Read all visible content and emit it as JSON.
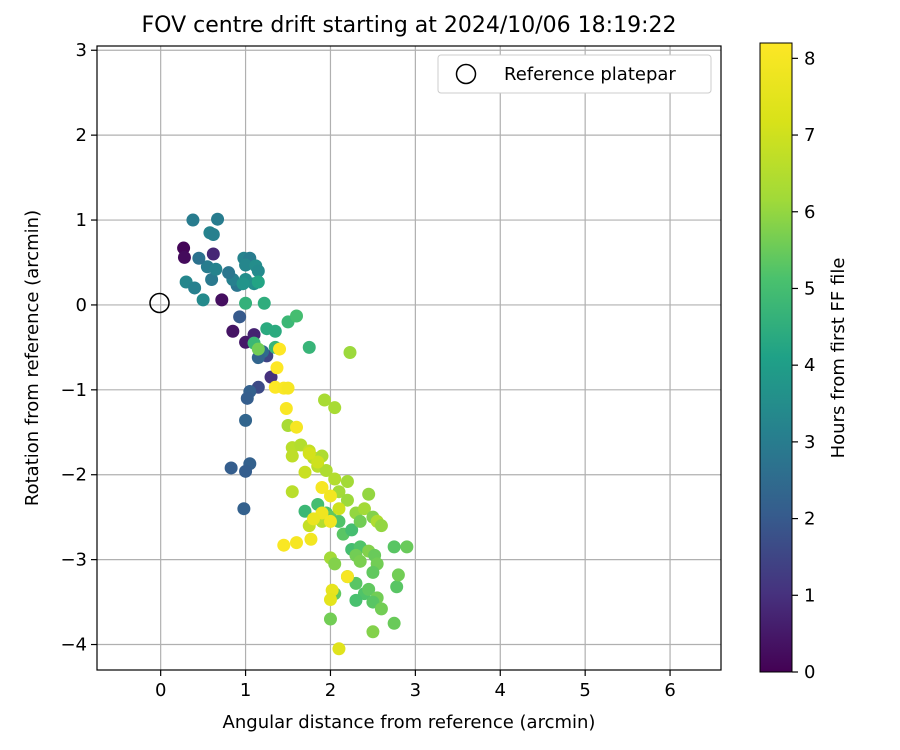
{
  "chart_data": {
    "type": "scatter",
    "title": "FOV centre drift starting at 2024/10/06 18:19:22",
    "xlabel": "Angular distance from reference (arcmin)",
    "ylabel": "Rotation from reference (arcmin)",
    "xlim": [
      -0.75,
      6.6
    ],
    "ylim": [
      -4.3,
      3.05
    ],
    "xticks": [
      0,
      1,
      2,
      3,
      4,
      5,
      6
    ],
    "yticks": [
      -4,
      -3,
      -2,
      -1,
      0,
      1,
      2,
      3
    ],
    "grid": true,
    "legend": {
      "position": "top-right",
      "label": "Reference platepar"
    },
    "reference_point": {
      "x": 0,
      "y": 0
    },
    "colorbar": {
      "label": "Hours from first FF file",
      "min": 0,
      "max": 8.2,
      "ticks": [
        0,
        1,
        2,
        3,
        4,
        5,
        6,
        7,
        8
      ],
      "colormap": "viridis"
    },
    "points": [
      {
        "x": 0.27,
        "y": 0.67,
        "c": 0.1
      },
      {
        "x": 0.28,
        "y": 0.56,
        "c": 0.2
      },
      {
        "x": 0.72,
        "y": 0.06,
        "c": 0.3
      },
      {
        "x": 0.85,
        "y": -0.31,
        "c": 0.4
      },
      {
        "x": 1.0,
        "y": -0.44,
        "c": 0.5
      },
      {
        "x": 1.1,
        "y": -0.35,
        "c": 0.7
      },
      {
        "x": 0.62,
        "y": 0.6,
        "c": 0.8
      },
      {
        "x": 1.3,
        "y": -0.85,
        "c": 1.0
      },
      {
        "x": 1.25,
        "y": -0.6,
        "c": 1.5
      },
      {
        "x": 0.93,
        "y": -0.14,
        "c": 2.0
      },
      {
        "x": 1.15,
        "y": -0.97,
        "c": 1.6
      },
      {
        "x": 1.05,
        "y": -1.02,
        "c": 2.2
      },
      {
        "x": 1.02,
        "y": -1.1,
        "c": 2.1
      },
      {
        "x": 1.0,
        "y": -1.36,
        "c": 2.3
      },
      {
        "x": 1.05,
        "y": -1.87,
        "c": 2.2
      },
      {
        "x": 1.0,
        "y": -1.96,
        "c": 2.1
      },
      {
        "x": 0.83,
        "y": -1.92,
        "c": 2.1
      },
      {
        "x": 0.98,
        "y": -2.4,
        "c": 2.2
      },
      {
        "x": 1.2,
        "y": -0.55,
        "c": 2.5
      },
      {
        "x": 1.15,
        "y": -0.62,
        "c": 2.3
      },
      {
        "x": 0.9,
        "y": 0.23,
        "c": 2.8
      },
      {
        "x": 0.85,
        "y": 0.3,
        "c": 3.1
      },
      {
        "x": 0.8,
        "y": 0.38,
        "c": 2.8
      },
      {
        "x": 0.6,
        "y": 0.3,
        "c": 2.9
      },
      {
        "x": 0.55,
        "y": 0.45,
        "c": 3.0
      },
      {
        "x": 0.65,
        "y": 0.42,
        "c": 3.2
      },
      {
        "x": 0.45,
        "y": 0.55,
        "c": 2.7
      },
      {
        "x": 0.38,
        "y": 1.0,
        "c": 3.0
      },
      {
        "x": 0.67,
        "y": 1.01,
        "c": 3.0
      },
      {
        "x": 0.58,
        "y": 0.85,
        "c": 3.2
      },
      {
        "x": 0.62,
        "y": 0.83,
        "c": 3.1
      },
      {
        "x": 0.3,
        "y": 0.27,
        "c": 3.3
      },
      {
        "x": 0.4,
        "y": 0.2,
        "c": 3.1
      },
      {
        "x": 0.5,
        "y": 0.06,
        "c": 3.4
      },
      {
        "x": 0.98,
        "y": 0.55,
        "c": 3.2
      },
      {
        "x": 1.05,
        "y": 0.55,
        "c": 3.0
      },
      {
        "x": 1.0,
        "y": 0.47,
        "c": 3.3
      },
      {
        "x": 1.12,
        "y": 0.46,
        "c": 3.5
      },
      {
        "x": 1.15,
        "y": 0.4,
        "c": 3.4
      },
      {
        "x": 1.0,
        "y": 0.3,
        "c": 3.5
      },
      {
        "x": 1.1,
        "y": 0.25,
        "c": 3.6
      },
      {
        "x": 0.97,
        "y": 0.25,
        "c": 3.7
      },
      {
        "x": 1.15,
        "y": 0.27,
        "c": 4.2
      },
      {
        "x": 1.0,
        "y": 0.02,
        "c": 4.6
      },
      {
        "x": 1.22,
        "y": 0.02,
        "c": 4.5
      },
      {
        "x": 1.25,
        "y": -0.28,
        "c": 4.4
      },
      {
        "x": 1.35,
        "y": -0.31,
        "c": 4.4
      },
      {
        "x": 1.1,
        "y": -0.45,
        "c": 4.8
      },
      {
        "x": 1.15,
        "y": -0.52,
        "c": 5.6
      },
      {
        "x": 1.35,
        "y": -0.5,
        "c": 4.7
      },
      {
        "x": 1.5,
        "y": -0.2,
        "c": 4.8
      },
      {
        "x": 1.6,
        "y": -0.13,
        "c": 5.0
      },
      {
        "x": 1.75,
        "y": -0.5,
        "c": 4.7
      },
      {
        "x": 2.23,
        "y": -0.56,
        "c": 6.1
      },
      {
        "x": 1.93,
        "y": -1.12,
        "c": 6.3
      },
      {
        "x": 2.05,
        "y": -1.21,
        "c": 6.3
      },
      {
        "x": 1.5,
        "y": -1.42,
        "c": 6.3
      },
      {
        "x": 1.55,
        "y": -1.68,
        "c": 6.6
      },
      {
        "x": 1.65,
        "y": -1.65,
        "c": 6.5
      },
      {
        "x": 1.55,
        "y": -1.78,
        "c": 6.7
      },
      {
        "x": 1.75,
        "y": -1.72,
        "c": 6.8
      },
      {
        "x": 1.8,
        "y": -1.8,
        "c": 6.6
      },
      {
        "x": 1.9,
        "y": -1.78,
        "c": 6.4
      },
      {
        "x": 1.85,
        "y": -1.9,
        "c": 6.6
      },
      {
        "x": 1.7,
        "y": -1.97,
        "c": 6.9
      },
      {
        "x": 1.95,
        "y": -1.95,
        "c": 6.4
      },
      {
        "x": 2.05,
        "y": -2.05,
        "c": 6.5
      },
      {
        "x": 2.2,
        "y": -2.08,
        "c": 6.2
      },
      {
        "x": 2.1,
        "y": -2.2,
        "c": 6.2
      },
      {
        "x": 2.2,
        "y": -2.3,
        "c": 6.1
      },
      {
        "x": 2.45,
        "y": -2.23,
        "c": 6.0
      },
      {
        "x": 1.55,
        "y": -2.2,
        "c": 6.6
      },
      {
        "x": 1.7,
        "y": -2.43,
        "c": 4.8
      },
      {
        "x": 1.85,
        "y": -2.35,
        "c": 5.0
      },
      {
        "x": 1.95,
        "y": -2.45,
        "c": 5.2
      },
      {
        "x": 1.75,
        "y": -2.6,
        "c": 6.8
      },
      {
        "x": 1.9,
        "y": -2.55,
        "c": 6.5
      },
      {
        "x": 2.0,
        "y": -2.5,
        "c": 5.4
      },
      {
        "x": 2.1,
        "y": -2.55,
        "c": 5.2
      },
      {
        "x": 2.15,
        "y": -2.7,
        "c": 5.3
      },
      {
        "x": 2.25,
        "y": -2.65,
        "c": 5.0
      },
      {
        "x": 2.3,
        "y": -2.45,
        "c": 6.0
      },
      {
        "x": 2.4,
        "y": -2.4,
        "c": 6.2
      },
      {
        "x": 2.35,
        "y": -2.55,
        "c": 5.6
      },
      {
        "x": 2.5,
        "y": -2.5,
        "c": 5.8
      },
      {
        "x": 2.55,
        "y": -2.55,
        "c": 6.4
      },
      {
        "x": 2.6,
        "y": -2.6,
        "c": 6.0
      },
      {
        "x": 2.25,
        "y": -2.88,
        "c": 5.0
      },
      {
        "x": 2.35,
        "y": -2.85,
        "c": 5.2
      },
      {
        "x": 2.45,
        "y": -2.9,
        "c": 5.8
      },
      {
        "x": 2.52,
        "y": -2.95,
        "c": 5.5
      },
      {
        "x": 2.3,
        "y": -2.95,
        "c": 5.6
      },
      {
        "x": 2.35,
        "y": -3.02,
        "c": 5.7
      },
      {
        "x": 2.0,
        "y": -2.98,
        "c": 6.2
      },
      {
        "x": 2.05,
        "y": -3.05,
        "c": 5.8
      },
      {
        "x": 2.55,
        "y": -3.05,
        "c": 5.6
      },
      {
        "x": 2.5,
        "y": -3.15,
        "c": 5.4
      },
      {
        "x": 2.3,
        "y": -3.28,
        "c": 5.3
      },
      {
        "x": 2.4,
        "y": -3.4,
        "c": 5.2
      },
      {
        "x": 2.45,
        "y": -3.35,
        "c": 5.4
      },
      {
        "x": 2.55,
        "y": -3.45,
        "c": 5.6
      },
      {
        "x": 2.5,
        "y": -3.5,
        "c": 5.3
      },
      {
        "x": 2.6,
        "y": -3.58,
        "c": 5.6
      },
      {
        "x": 2.3,
        "y": -3.48,
        "c": 5.1
      },
      {
        "x": 2.2,
        "y": -3.2,
        "c": 5.4
      },
      {
        "x": 2.05,
        "y": -3.4,
        "c": 5.4
      },
      {
        "x": 2.0,
        "y": -3.7,
        "c": 5.6
      },
      {
        "x": 2.5,
        "y": -3.85,
        "c": 5.8
      },
      {
        "x": 2.75,
        "y": -3.75,
        "c": 5.5
      },
      {
        "x": 2.78,
        "y": -3.32,
        "c": 5.3
      },
      {
        "x": 2.8,
        "y": -3.18,
        "c": 5.6
      },
      {
        "x": 2.75,
        "y": -2.85,
        "c": 5.3
      },
      {
        "x": 2.9,
        "y": -2.85,
        "c": 5.5
      },
      {
        "x": 1.4,
        "y": -0.52,
        "c": 8.2
      },
      {
        "x": 1.37,
        "y": -0.74,
        "c": 8.2
      },
      {
        "x": 1.35,
        "y": -0.97,
        "c": 8.2
      },
      {
        "x": 1.45,
        "y": -0.98,
        "c": 8.1
      },
      {
        "x": 1.5,
        "y": -0.98,
        "c": 8.0
      },
      {
        "x": 1.48,
        "y": -1.22,
        "c": 8.1
      },
      {
        "x": 1.6,
        "y": -1.44,
        "c": 8.0
      },
      {
        "x": 1.9,
        "y": -2.15,
        "c": 8.0
      },
      {
        "x": 2.0,
        "y": -2.25,
        "c": 7.9
      },
      {
        "x": 1.9,
        "y": -2.45,
        "c": 7.8
      },
      {
        "x": 2.0,
        "y": -2.55,
        "c": 7.9
      },
      {
        "x": 1.8,
        "y": -2.52,
        "c": 7.7
      },
      {
        "x": 1.45,
        "y": -2.83,
        "c": 8.1
      },
      {
        "x": 1.6,
        "y": -2.8,
        "c": 8.0
      },
      {
        "x": 1.77,
        "y": -2.76,
        "c": 7.9
      },
      {
        "x": 2.2,
        "y": -3.2,
        "c": 8.0
      },
      {
        "x": 2.02,
        "y": -3.36,
        "c": 7.6
      },
      {
        "x": 2.0,
        "y": -3.47,
        "c": 7.5
      },
      {
        "x": 2.1,
        "y": -4.05,
        "c": 7.4
      },
      {
        "x": 1.85,
        "y": -1.85,
        "c": 7.0
      },
      {
        "x": 1.75,
        "y": -1.75,
        "c": 7.1
      },
      {
        "x": 2.1,
        "y": -2.4,
        "c": 7.0
      }
    ]
  }
}
